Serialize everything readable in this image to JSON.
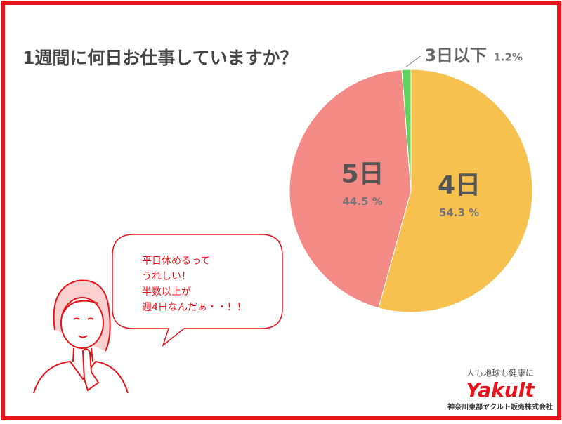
{
  "chart_data": {
    "type": "pie",
    "title": "1週間に何日お仕事していますか？",
    "categories": [
      "4日",
      "5日",
      "3日以下"
    ],
    "values": [
      54.3,
      44.5,
      1.2
    ],
    "value_labels": [
      "54.3 %",
      "44.5 %",
      "1.2%"
    ],
    "colors": [
      "#f7c14f",
      "#f58b87",
      "#5fd35c"
    ]
  },
  "speech_bubble": {
    "lines": [
      "平日休めるって",
      "うれしい！",
      "半数以上が",
      "週4日なんだぁ・・！！"
    ]
  },
  "logo": {
    "tagline": "人も地球も健康に",
    "brand": "Yakult",
    "company": "神奈川東部ヤクルト販売株式会社"
  }
}
